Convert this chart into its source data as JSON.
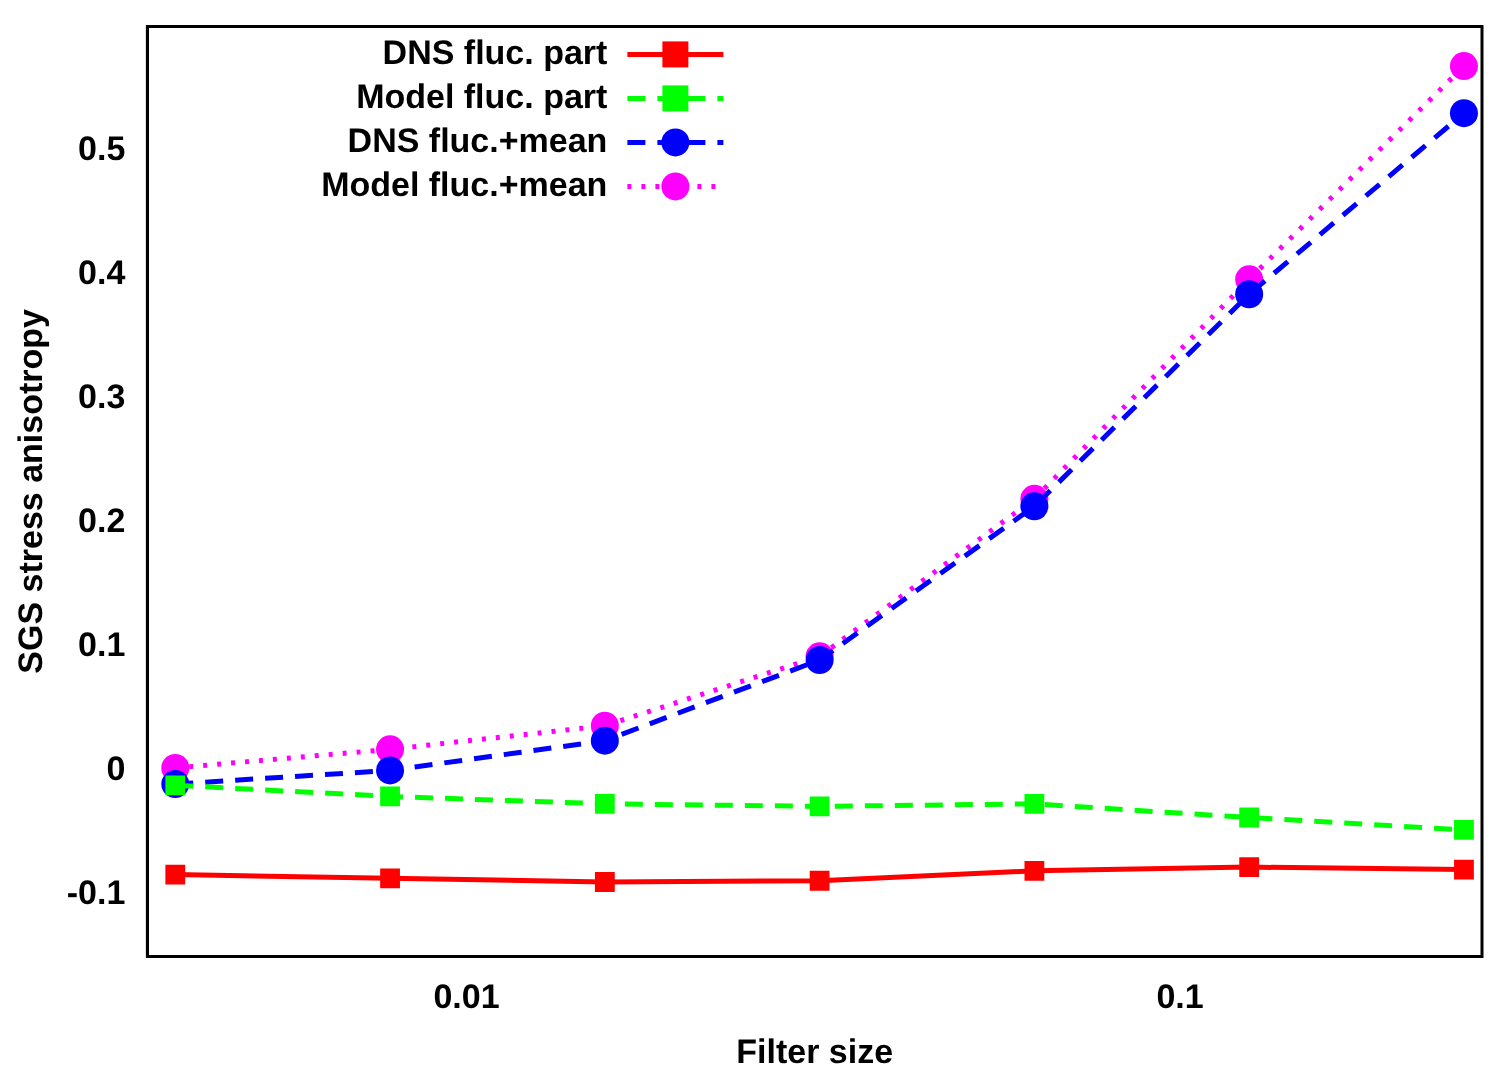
{
  "chart_data": {
    "type": "line",
    "xlabel": "Filter size",
    "ylabel": "SGS stress anisotropy",
    "log": "x",
    "x": [
      0.00390625,
      0.0078125,
      0.015625,
      0.03125,
      0.0625,
      0.125,
      0.25
    ],
    "xlim": [
      0.00357,
      0.265
    ],
    "xticks": [
      0.01,
      0.1
    ],
    "ylim": [
      -0.15,
      0.6
    ],
    "yticks": [
      -0.1,
      0,
      0.1,
      0.2,
      0.3,
      0.4,
      0.5
    ],
    "grid": false,
    "legend": "top left",
    "series": [
      {
        "name": "DNS fluc. part",
        "color": "#ff0000",
        "marker": "square",
        "line_style": "solid",
        "values": [
          -0.084,
          -0.087,
          -0.09,
          -0.089,
          -0.081,
          -0.078,
          -0.08
        ]
      },
      {
        "name": "Model fluc. part",
        "color": "#00ff00",
        "marker": "square",
        "line_style": "dashed",
        "values": [
          -0.012,
          -0.021,
          -0.027,
          -0.029,
          -0.027,
          -0.038,
          -0.048
        ]
      },
      {
        "name": "DNS fluc.+mean",
        "color": "#0000ff",
        "marker": "circle",
        "line_style": "dashed",
        "values": [
          -0.011,
          0,
          0.024,
          0.089,
          0.213,
          0.384,
          0.53
        ]
      },
      {
        "name": "Model fluc.+mean",
        "color": "#ff00ff",
        "marker": "circle",
        "line_style": "dotted",
        "values": [
          0.002,
          0.017,
          0.036,
          0.092,
          0.219,
          0.396,
          0.568
        ]
      }
    ]
  }
}
